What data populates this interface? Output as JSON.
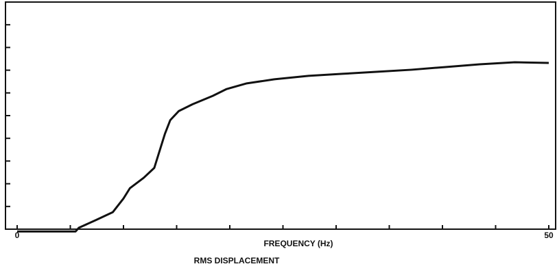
{
  "chart_data": {
    "type": "line",
    "title": "RMS DISPLACEMENT",
    "x_label": "FREQUENCY (Hz)",
    "xlim": [
      0,
      50
    ],
    "xticks": [
      {
        "value": 0,
        "label": "0"
      },
      5,
      10,
      15,
      20,
      25,
      30,
      35,
      40,
      45,
      {
        "value": 50,
        "label": "50"
      }
    ],
    "ylim": [
      0,
      10
    ],
    "yticks": [
      0,
      1,
      2,
      3,
      4,
      5,
      6,
      7,
      8,
      9,
      10
    ],
    "grid": false,
    "series": [
      {
        "name": "RMS DISPLACEMENT",
        "color": "#111111",
        "x": [
          0,
          5.5,
          5.8,
          7.4,
          9.0,
          10.0,
          10.6,
          11.9,
          12.9,
          13.5,
          13.9,
          14.4,
          15.2,
          16.5,
          18.4,
          19.7,
          21.6,
          24.2,
          27.4,
          30.6,
          33.9,
          37.1,
          40.3,
          43.5,
          46.8,
          50
        ],
        "values": [
          -0.1,
          -0.1,
          0.06,
          0.4,
          0.75,
          1.35,
          1.8,
          2.26,
          2.7,
          3.6,
          4.2,
          4.8,
          5.2,
          5.5,
          5.87,
          6.17,
          6.42,
          6.6,
          6.75,
          6.84,
          6.93,
          7.02,
          7.14,
          7.26,
          7.35,
          7.32
        ]
      }
    ]
  }
}
